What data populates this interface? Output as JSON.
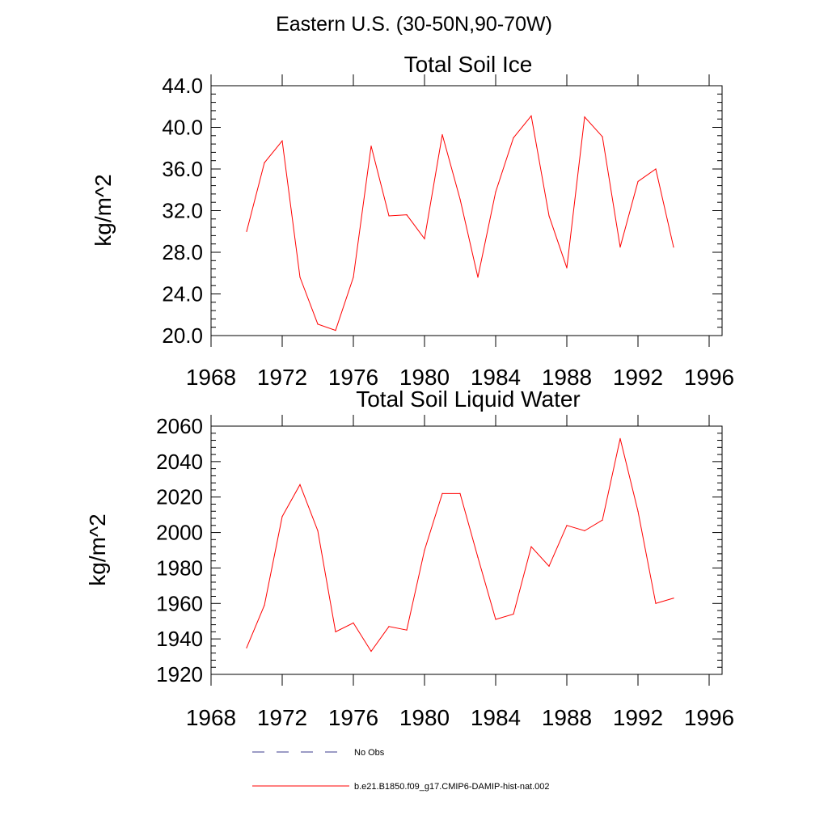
{
  "figure": {
    "title": "Eastern U.S. (30-50N,90-70W)"
  },
  "legend": {
    "placement": "bottom",
    "entries": [
      {
        "label": "No Obs",
        "color": "#3a3a8c",
        "style": "dashed"
      },
      {
        "label": "b.e21.B1850.f09_g17.CMIP6-DAMIP-hist-nat.002",
        "color": "#ff0000",
        "style": "solid"
      }
    ]
  },
  "chart_data": [
    {
      "type": "line",
      "title": "Total Soil Ice",
      "ylabel": "kg/m^2",
      "xlabel": "",
      "xlim": [
        1968,
        1996
      ],
      "ylim": [
        20,
        44
      ],
      "xticks": [
        "1968",
        "1972",
        "1976",
        "1980",
        "1984",
        "1988",
        "1992",
        "1996"
      ],
      "yticks": [
        "20.0",
        "24.0",
        "28.0",
        "32.0",
        "36.0",
        "40.0",
        "44.0"
      ],
      "grid": false,
      "x": [
        1970,
        1971,
        1972,
        1973,
        1974,
        1975,
        1976,
        1977,
        1978,
        1979,
        1980,
        1981,
        1982,
        1983,
        1984,
        1985,
        1986,
        1987,
        1988,
        1989,
        1990,
        1991,
        1992,
        1993,
        1994
      ],
      "series": [
        {
          "name": "b.e21.B1850.f09_g17.CMIP6-DAMIP-hist-nat.002",
          "color": "#ff0000",
          "values": [
            30.0,
            36.6,
            38.7,
            25.6,
            21.1,
            20.5,
            25.6,
            38.2,
            31.5,
            31.6,
            29.3,
            39.3,
            33.1,
            25.6,
            33.8,
            39.0,
            41.1,
            31.5,
            26.5,
            41.0,
            39.1,
            28.5,
            34.8,
            36.0,
            28.5
          ]
        }
      ]
    },
    {
      "type": "line",
      "title": "Total Soil Liquid Water",
      "ylabel": "kg/m^2",
      "xlabel": "",
      "xlim": [
        1968,
        1996
      ],
      "ylim": [
        1920,
        2060
      ],
      "xticks": [
        "1968",
        "1972",
        "1976",
        "1980",
        "1984",
        "1988",
        "1992",
        "1996"
      ],
      "yticks": [
        "1920",
        "1940",
        "1960",
        "1980",
        "2000",
        "2020",
        "2040",
        "2060"
      ],
      "grid": false,
      "x": [
        1970,
        1971,
        1972,
        1973,
        1974,
        1975,
        1976,
        1977,
        1978,
        1979,
        1980,
        1981,
        1982,
        1983,
        1984,
        1985,
        1986,
        1987,
        1988,
        1989,
        1990,
        1991,
        1992,
        1993,
        1994
      ],
      "series": [
        {
          "name": "b.e21.B1850.f09_g17.CMIP6-DAMIP-hist-nat.002",
          "color": "#ff0000",
          "values": [
            1935,
            1959,
            2009,
            2027,
            2001,
            1944,
            1949,
            1933,
            1947,
            1945,
            1990,
            2022,
            2022,
            1986,
            1951,
            1954,
            1992,
            1981,
            2004,
            2001,
            2007,
            2053,
            2012,
            1960,
            1963
          ]
        }
      ]
    }
  ]
}
